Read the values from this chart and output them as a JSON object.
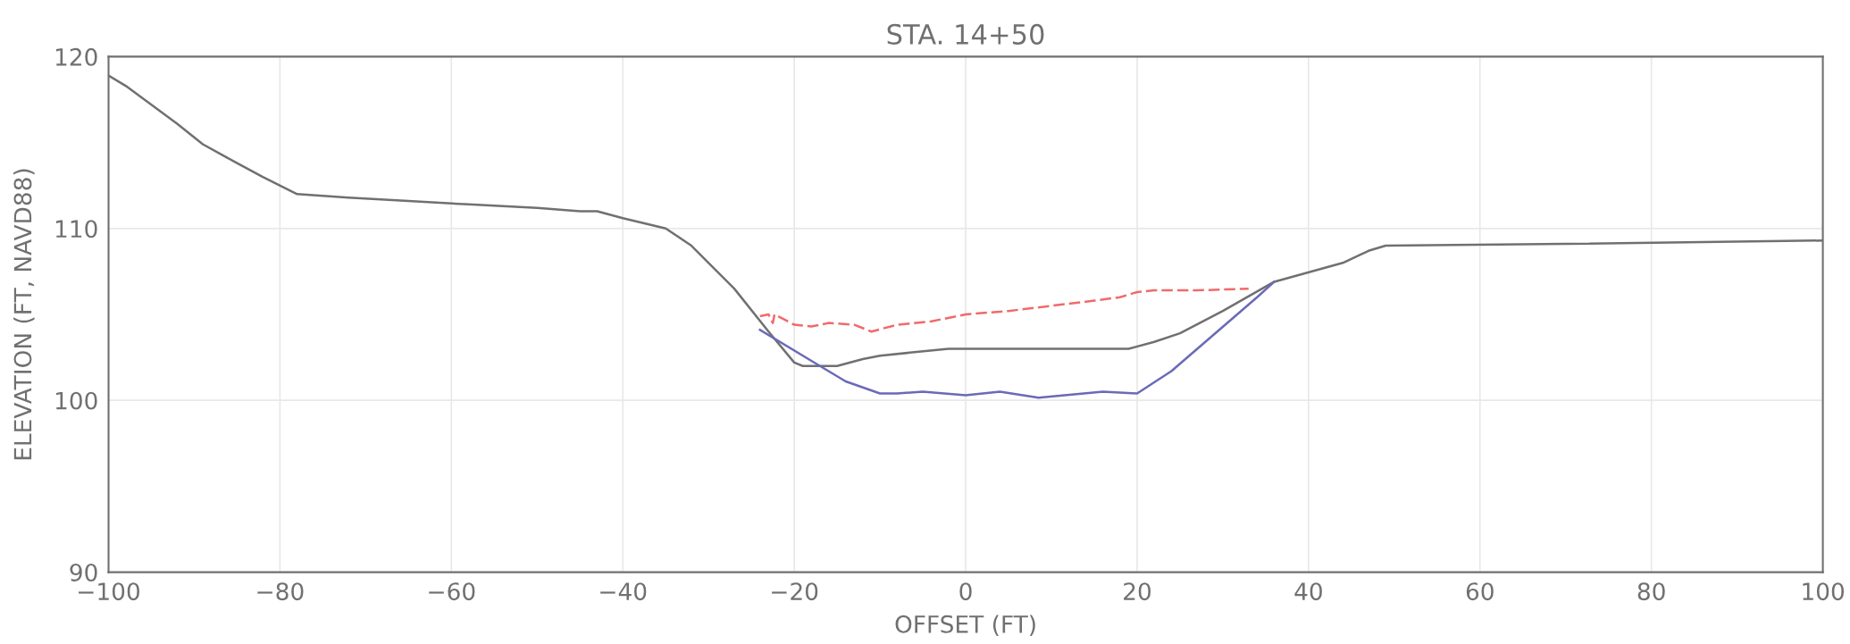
{
  "chart_data": {
    "type": "line",
    "title": "STA. 14+50",
    "xlabel": "OFFSET (FT)",
    "ylabel": "ELEVATION (FT, NAVD88)",
    "xlim": [
      -100,
      100
    ],
    "ylim": [
      90,
      120
    ],
    "xticks": [
      -100,
      -80,
      -60,
      -40,
      -20,
      0,
      20,
      40,
      60,
      80,
      100
    ],
    "yticks": [
      90,
      100,
      110,
      120
    ],
    "grid": true,
    "series": [
      {
        "color": "#707070",
        "line_style": "solid",
        "x": [
          -100,
          -98,
          -95,
          -92,
          -89,
          -85,
          -82,
          -78,
          -72,
          -65,
          -58,
          -50,
          -45,
          -43,
          -40,
          -35,
          -32,
          -30,
          -27,
          -23,
          -20,
          -19,
          -15,
          -12,
          -10,
          -6,
          -2,
          4,
          10,
          15,
          19,
          22,
          25,
          30,
          36,
          44,
          47,
          49,
          70,
          100
        ],
        "values": [
          118.9,
          118.3,
          117.2,
          116.1,
          114.9,
          113.8,
          113.0,
          112.0,
          111.8,
          111.6,
          111.4,
          111.2,
          111.0,
          111.0,
          110.6,
          110.0,
          109.0,
          108.0,
          106.5,
          104.0,
          102.2,
          102.0,
          102.0,
          102.4,
          102.6,
          102.8,
          103.0,
          103.0,
          103.0,
          103.0,
          103.0,
          103.4,
          103.9,
          105.2,
          106.9,
          108.0,
          108.7,
          109.0,
          109.1,
          109.3
        ]
      },
      {
        "color": "#6a6ab8",
        "line_style": "solid",
        "x": [
          -24,
          -17,
          -14,
          -10,
          -8,
          -5,
          0,
          4,
          8.5,
          16,
          20,
          24,
          34,
          36
        ],
        "values": [
          104.1,
          102.0,
          101.1,
          100.4,
          100.4,
          100.5,
          100.3,
          100.5,
          100.15,
          100.5,
          100.4,
          101.7,
          106.0,
          106.9
        ]
      },
      {
        "color": "#f06a6a",
        "line_style": "dashed",
        "x": [
          -24,
          -23,
          -22.5,
          -22.3,
          -20,
          -18,
          -16,
          -13,
          -11,
          -8,
          -4,
          0,
          5,
          10,
          15,
          18,
          20,
          22,
          27,
          33
        ],
        "values": [
          104.9,
          105.0,
          104.5,
          105.0,
          104.4,
          104.3,
          104.5,
          104.4,
          104.0,
          104.4,
          104.6,
          105.0,
          105.2,
          105.5,
          105.8,
          106.0,
          106.3,
          106.4,
          106.4,
          106.5
        ]
      }
    ]
  }
}
